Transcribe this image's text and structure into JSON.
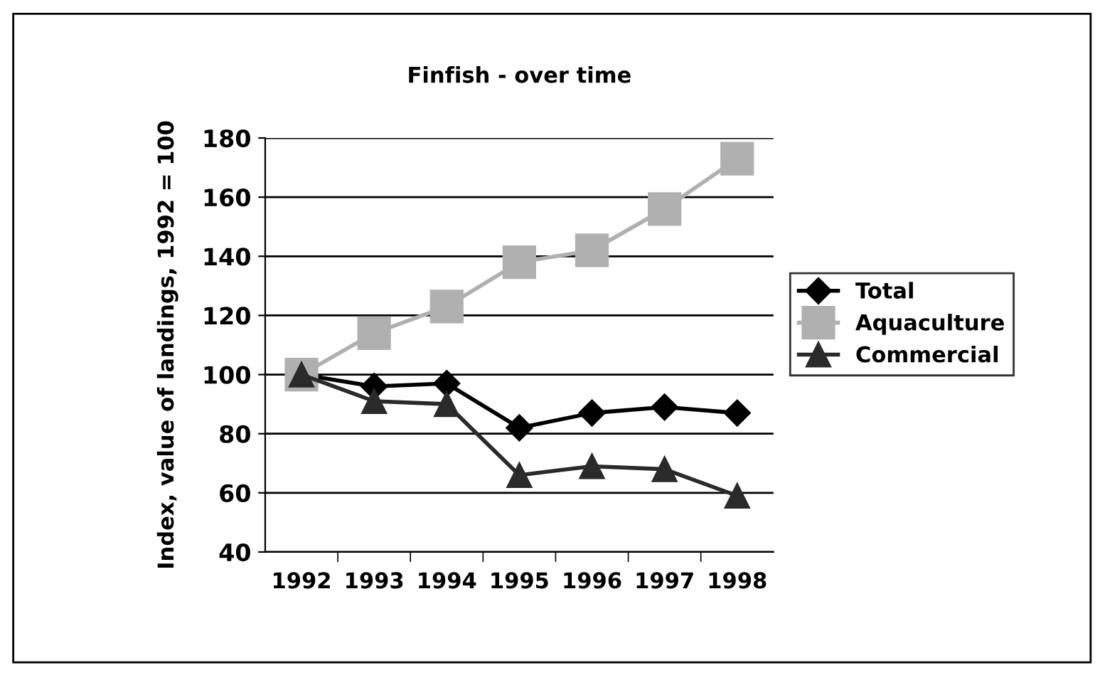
{
  "chart_data": {
    "type": "line",
    "title": "Finfish - over time",
    "ylabel": "Index, value of landings, 1992 = 100",
    "categories": [
      "1992",
      "1993",
      "1994",
      "1995",
      "1996",
      "1997",
      "1998"
    ],
    "series": [
      {
        "name": "Total",
        "color": "#000000",
        "marker": "diamond",
        "values": [
          100,
          96,
          97,
          82,
          87,
          89,
          87
        ]
      },
      {
        "name": "Aquaculture",
        "color": "#b0b0b0",
        "marker": "square",
        "values": [
          100,
          114,
          123,
          138,
          142,
          156,
          173
        ]
      },
      {
        "name": "Commercial",
        "color": "#2a2a2a",
        "marker": "triangle",
        "values": [
          100,
          91,
          90,
          66,
          69,
          68,
          59
        ]
      }
    ],
    "ylim": [
      40,
      180
    ],
    "yticks": [
      40,
      60,
      80,
      100,
      120,
      140,
      160,
      180
    ],
    "grid": "y",
    "legend": "right"
  }
}
